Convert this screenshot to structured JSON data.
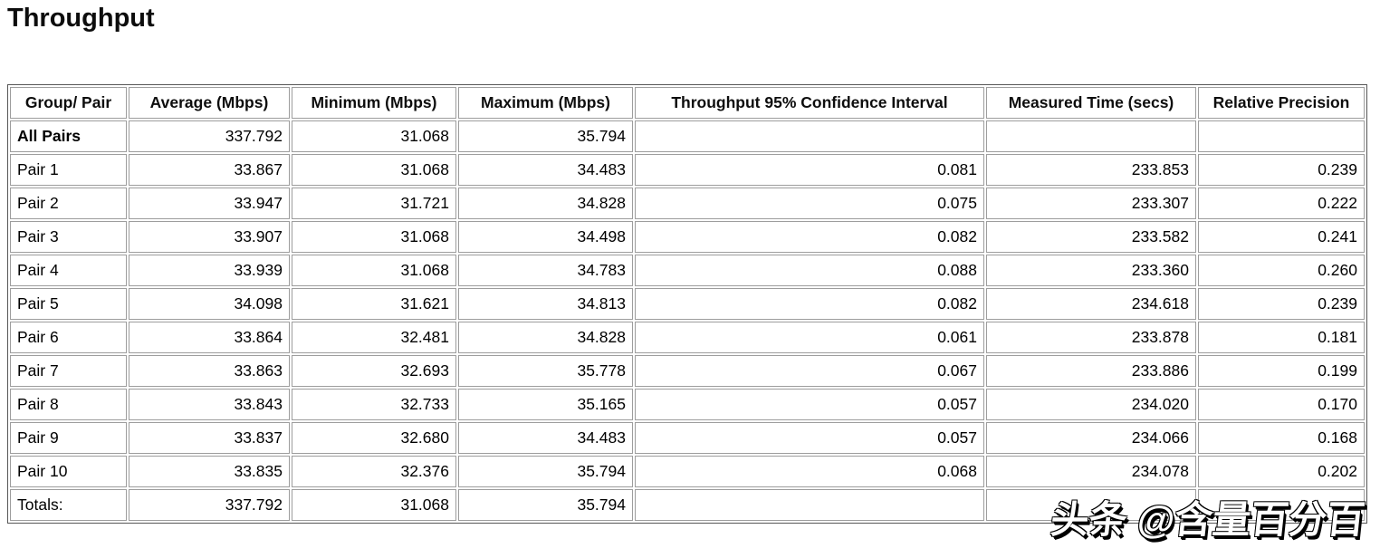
{
  "page": {
    "title": "Throughput"
  },
  "table": {
    "columns": [
      "Group/ Pair",
      "Average (Mbps)",
      "Minimum (Mbps)",
      "Maximum (Mbps)",
      "Throughput 95% Confidence Interval",
      "Measured Time (secs)",
      "Relative Precision"
    ],
    "rows": [
      {
        "bold": true,
        "cells": [
          "All Pairs",
          "337.792",
          "31.068",
          "35.794",
          "",
          "",
          ""
        ]
      },
      {
        "bold": false,
        "cells": [
          "Pair 1",
          "33.867",
          "31.068",
          "34.483",
          "0.081",
          "233.853",
          "0.239"
        ]
      },
      {
        "bold": false,
        "cells": [
          "Pair 2",
          "33.947",
          "31.721",
          "34.828",
          "0.075",
          "233.307",
          "0.222"
        ]
      },
      {
        "bold": false,
        "cells": [
          "Pair 3",
          "33.907",
          "31.068",
          "34.498",
          "0.082",
          "233.582",
          "0.241"
        ]
      },
      {
        "bold": false,
        "cells": [
          "Pair 4",
          "33.939",
          "31.068",
          "34.783",
          "0.088",
          "233.360",
          "0.260"
        ]
      },
      {
        "bold": false,
        "cells": [
          "Pair 5",
          "34.098",
          "31.621",
          "34.813",
          "0.082",
          "234.618",
          "0.239"
        ]
      },
      {
        "bold": false,
        "cells": [
          "Pair 6",
          "33.864",
          "32.481",
          "34.828",
          "0.061",
          "233.878",
          "0.181"
        ]
      },
      {
        "bold": false,
        "cells": [
          "Pair 7",
          "33.863",
          "32.693",
          "35.778",
          "0.067",
          "233.886",
          "0.199"
        ]
      },
      {
        "bold": false,
        "cells": [
          "Pair 8",
          "33.843",
          "32.733",
          "35.165",
          "0.057",
          "234.020",
          "0.170"
        ]
      },
      {
        "bold": false,
        "cells": [
          "Pair 9",
          "33.837",
          "32.680",
          "34.483",
          "0.057",
          "234.066",
          "0.168"
        ]
      },
      {
        "bold": false,
        "cells": [
          "Pair 10",
          "33.835",
          "32.376",
          "35.794",
          "0.068",
          "234.078",
          "0.202"
        ]
      },
      {
        "bold": false,
        "cells": [
          "Totals:",
          "337.792",
          "31.068",
          "35.794",
          "",
          "",
          ""
        ]
      }
    ]
  },
  "watermark": {
    "text": "头条 @含量百分百"
  }
}
